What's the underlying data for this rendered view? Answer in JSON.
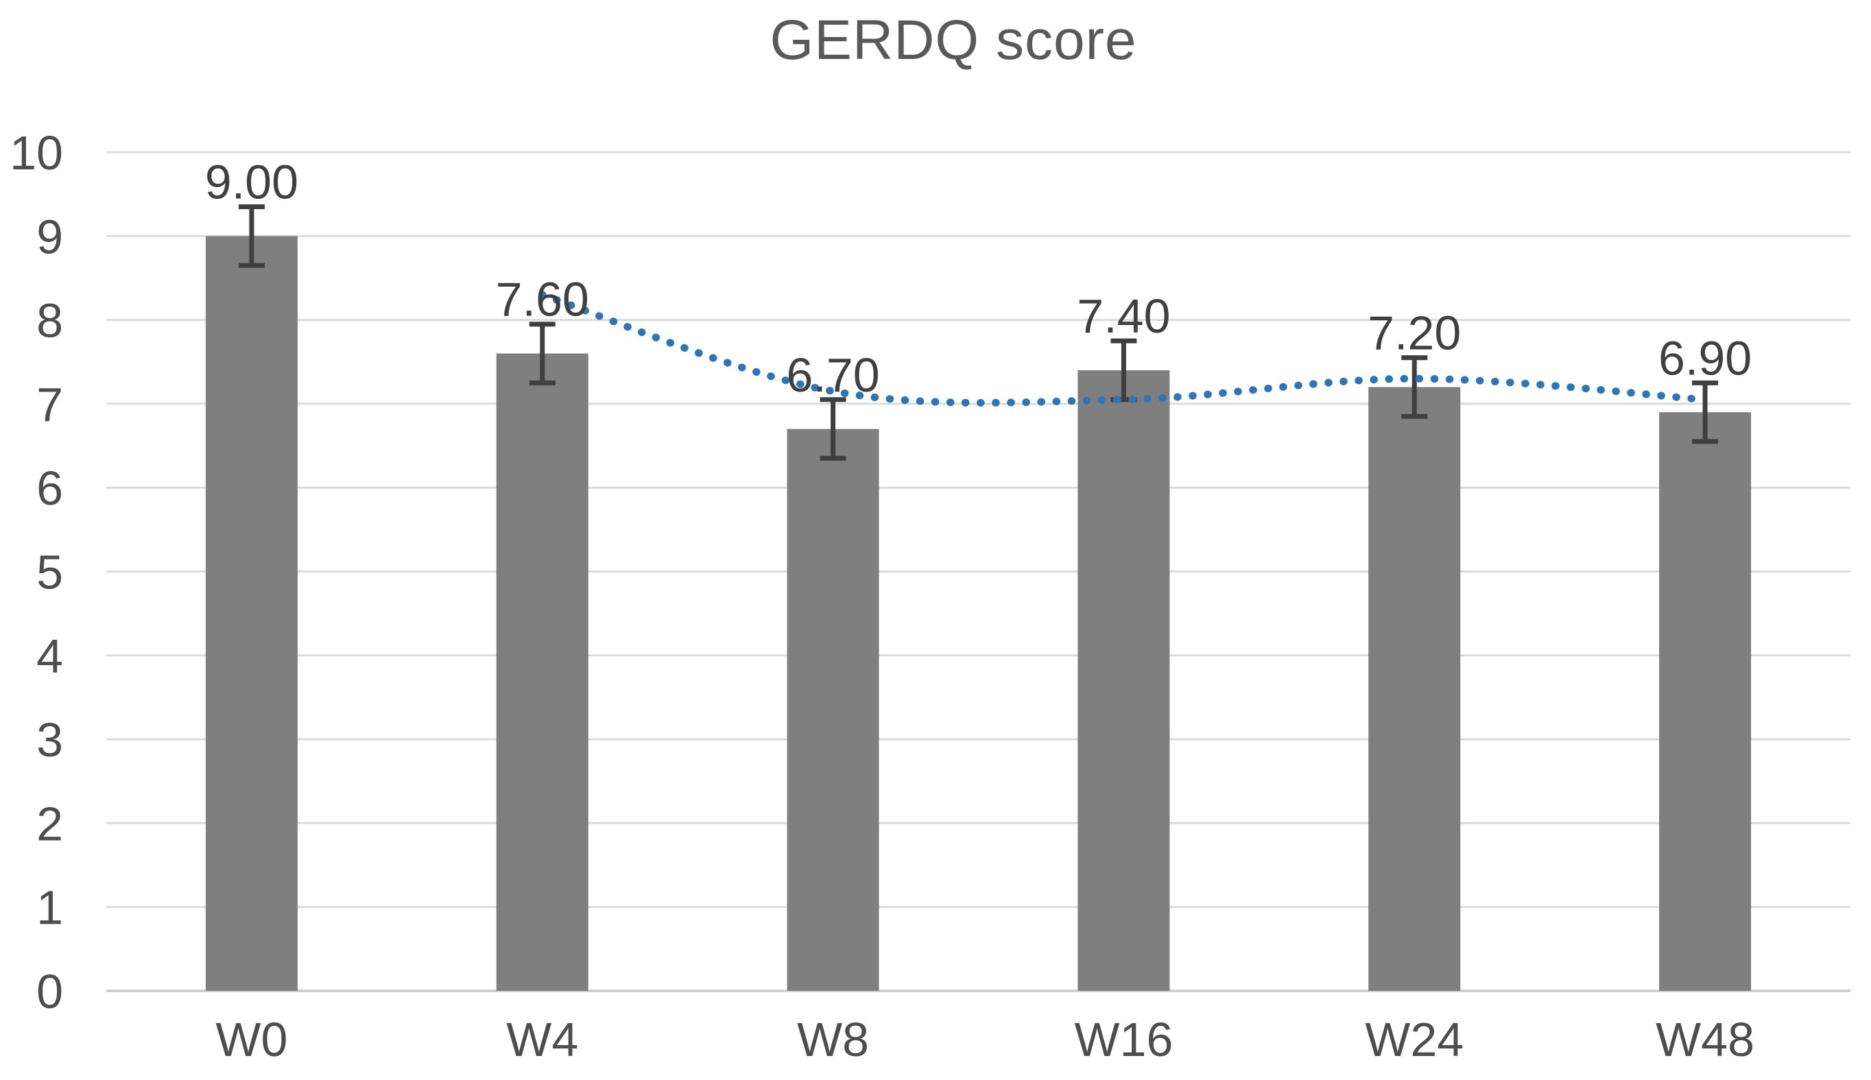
{
  "chart_data": {
    "type": "bar",
    "title": "GERDQ score",
    "categories": [
      "W0",
      "W4",
      "W8",
      "W16",
      "W24",
      "W48"
    ],
    "series": [
      {
        "name": "GERDQ score",
        "type": "bar",
        "values": [
          9.0,
          7.6,
          6.7,
          7.4,
          7.2,
          6.9
        ],
        "data_labels": [
          "9.00",
          "7.60",
          "6.70",
          "7.40",
          "7.20",
          "6.90"
        ],
        "error_bars": [
          0.35,
          0.35,
          0.35,
          0.35,
          0.35,
          0.35
        ]
      },
      {
        "name": "moving-average-trendline",
        "type": "dotted-line",
        "points": [
          {
            "category": "W4",
            "value": 8.3
          },
          {
            "category": "W8",
            "value": 7.15
          },
          {
            "category": "W16",
            "value": 7.05
          },
          {
            "category": "W24",
            "value": 7.3
          },
          {
            "category": "W48",
            "value": 7.05
          }
        ]
      }
    ],
    "xlabel": "",
    "ylabel": "",
    "ylim": [
      0,
      10
    ],
    "ytick_interval": 1,
    "ytick_labels": [
      "0",
      "1",
      "2",
      "3",
      "4",
      "5",
      "6",
      "7",
      "8",
      "9",
      "10"
    ],
    "grid": "horizontal",
    "legend": "none",
    "colors": {
      "bar": "#7F7F7F",
      "error_bar": "#3F3F3F",
      "trendline": "#2E75B6",
      "gridline": "#DBDBDB",
      "axis_line": "#CFCFCF",
      "tick_text": "#4D4D4D",
      "data_label_text": "#404040",
      "title_text": "#595959",
      "background": "#FFFFFF"
    }
  }
}
